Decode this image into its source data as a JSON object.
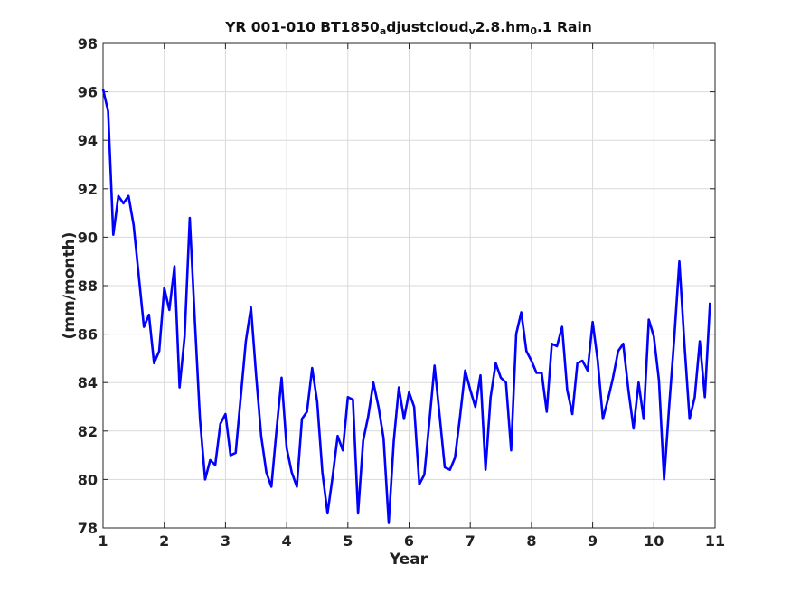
{
  "chart_data": {
    "type": "line",
    "title": "YR 001-010 BT1850_adjustcloud_v2.8.hm_0.1 Rain",
    "title_parts": [
      {
        "text": "YR 001-010 BT1850",
        "sub": false
      },
      {
        "text": "a",
        "sub": true
      },
      {
        "text": "djustcloud",
        "sub": false
      },
      {
        "text": "v",
        "sub": true
      },
      {
        "text": "2.8.hm",
        "sub": false
      },
      {
        "text": "0",
        "sub": true
      },
      {
        "text": ".1 Rain",
        "sub": false
      }
    ],
    "xlabel": "Year",
    "ylabel": "(mm/month)",
    "xlim": [
      1,
      11
    ],
    "ylim": [
      78,
      98
    ],
    "xticks": [
      1,
      2,
      3,
      4,
      5,
      6,
      7,
      8,
      9,
      10,
      11
    ],
    "yticks": [
      78,
      80,
      82,
      84,
      86,
      88,
      90,
      92,
      94,
      96,
      98
    ],
    "grid": true,
    "series_color": "#0000ff",
    "series": [
      {
        "values": [
          [
            1.0,
            96.1
          ],
          [
            1.083,
            95.2
          ],
          [
            1.167,
            90.1
          ],
          [
            1.25,
            91.7
          ],
          [
            1.333,
            91.4
          ],
          [
            1.417,
            91.7
          ],
          [
            1.5,
            90.5
          ],
          [
            1.583,
            88.4
          ],
          [
            1.667,
            86.3
          ],
          [
            1.75,
            86.8
          ],
          [
            1.833,
            84.8
          ],
          [
            1.917,
            85.3
          ],
          [
            2.0,
            87.9
          ],
          [
            2.083,
            87.0
          ],
          [
            2.167,
            88.8
          ],
          [
            2.25,
            83.8
          ],
          [
            2.333,
            85.9
          ],
          [
            2.417,
            90.8
          ],
          [
            2.5,
            86.5
          ],
          [
            2.583,
            82.5
          ],
          [
            2.667,
            80.0
          ],
          [
            2.75,
            80.8
          ],
          [
            2.833,
            80.6
          ],
          [
            2.917,
            82.3
          ],
          [
            3.0,
            82.7
          ],
          [
            3.083,
            81.0
          ],
          [
            3.167,
            81.1
          ],
          [
            3.25,
            83.4
          ],
          [
            3.333,
            85.7
          ],
          [
            3.417,
            87.1
          ],
          [
            3.5,
            84.3
          ],
          [
            3.583,
            81.8
          ],
          [
            3.667,
            80.3
          ],
          [
            3.75,
            79.7
          ],
          [
            3.833,
            82.0
          ],
          [
            3.917,
            84.2
          ],
          [
            4.0,
            81.3
          ],
          [
            4.083,
            80.3
          ],
          [
            4.167,
            79.7
          ],
          [
            4.25,
            82.5
          ],
          [
            4.333,
            82.8
          ],
          [
            4.417,
            84.6
          ],
          [
            4.5,
            83.2
          ],
          [
            4.583,
            80.3
          ],
          [
            4.667,
            78.6
          ],
          [
            4.75,
            80.1
          ],
          [
            4.833,
            81.8
          ],
          [
            4.917,
            81.2
          ],
          [
            5.0,
            83.4
          ],
          [
            5.083,
            83.3
          ],
          [
            5.167,
            78.6
          ],
          [
            5.25,
            81.6
          ],
          [
            5.333,
            82.6
          ],
          [
            5.417,
            84.0
          ],
          [
            5.5,
            83.0
          ],
          [
            5.583,
            81.7
          ],
          [
            5.667,
            78.2
          ],
          [
            5.75,
            81.6
          ],
          [
            5.833,
            83.8
          ],
          [
            5.917,
            82.5
          ],
          [
            6.0,
            83.6
          ],
          [
            6.083,
            83.0
          ],
          [
            6.167,
            79.8
          ],
          [
            6.25,
            80.2
          ],
          [
            6.333,
            82.4
          ],
          [
            6.417,
            84.7
          ],
          [
            6.5,
            82.6
          ],
          [
            6.583,
            80.5
          ],
          [
            6.667,
            80.4
          ],
          [
            6.75,
            80.9
          ],
          [
            6.833,
            82.6
          ],
          [
            6.917,
            84.5
          ],
          [
            7.0,
            83.7
          ],
          [
            7.083,
            83.0
          ],
          [
            7.167,
            84.3
          ],
          [
            7.25,
            80.4
          ],
          [
            7.333,
            83.4
          ],
          [
            7.417,
            84.8
          ],
          [
            7.5,
            84.2
          ],
          [
            7.583,
            84.0
          ],
          [
            7.667,
            81.2
          ],
          [
            7.75,
            86.0
          ],
          [
            7.833,
            86.9
          ],
          [
            7.917,
            85.3
          ],
          [
            8.0,
            84.9
          ],
          [
            8.083,
            84.4
          ],
          [
            8.167,
            84.4
          ],
          [
            8.25,
            82.8
          ],
          [
            8.333,
            85.6
          ],
          [
            8.417,
            85.5
          ],
          [
            8.5,
            86.3
          ],
          [
            8.583,
            83.7
          ],
          [
            8.667,
            82.7
          ],
          [
            8.75,
            84.8
          ],
          [
            8.833,
            84.9
          ],
          [
            8.917,
            84.5
          ],
          [
            9.0,
            86.5
          ],
          [
            9.083,
            84.9
          ],
          [
            9.167,
            82.5
          ],
          [
            9.25,
            83.3
          ],
          [
            9.333,
            84.2
          ],
          [
            9.417,
            85.3
          ],
          [
            9.5,
            85.6
          ],
          [
            9.583,
            83.7
          ],
          [
            9.667,
            82.1
          ],
          [
            9.75,
            84.0
          ],
          [
            9.833,
            82.5
          ],
          [
            9.917,
            86.6
          ],
          [
            10.0,
            85.9
          ],
          [
            10.083,
            84.1
          ],
          [
            10.167,
            80.0
          ],
          [
            10.25,
            83.0
          ],
          [
            10.333,
            85.8
          ],
          [
            10.417,
            89.0
          ],
          [
            10.5,
            85.6
          ],
          [
            10.583,
            82.5
          ],
          [
            10.667,
            83.4
          ],
          [
            10.75,
            85.7
          ],
          [
            10.833,
            83.4
          ],
          [
            10.917,
            87.3
          ]
        ]
      }
    ]
  }
}
